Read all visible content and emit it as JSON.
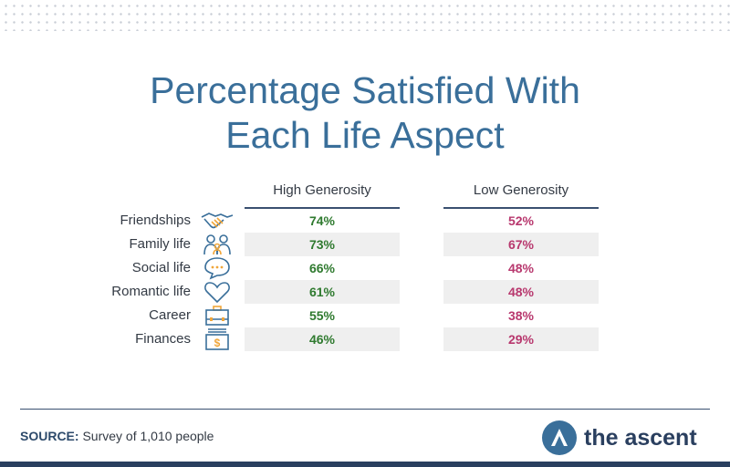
{
  "title": {
    "line1": "Percentage Satisfied With",
    "line2": "Each Life Aspect"
  },
  "columns": {
    "high": "High Generosity",
    "low": "Low Generosity"
  },
  "colors": {
    "title": "#3a6f9a",
    "high": "#2f7a2f",
    "low": "#b8386e",
    "icon": "#f0a63a",
    "icon_alt": "#3a6f9a"
  },
  "rows": [
    {
      "label": "Friendships",
      "icon": "handshake-icon",
      "high": "74%",
      "low": "52%"
    },
    {
      "label": "Family life",
      "icon": "family-icon",
      "high": "73%",
      "low": "67%"
    },
    {
      "label": "Social life",
      "icon": "speech-bubble-icon",
      "high": "66%",
      "low": "48%"
    },
    {
      "label": "Romantic life",
      "icon": "heart-icon",
      "high": "61%",
      "low": "48%"
    },
    {
      "label": "Career",
      "icon": "briefcase-icon",
      "high": "55%",
      "low": "38%"
    },
    {
      "label": "Finances",
      "icon": "money-icon",
      "high": "46%",
      "low": "29%"
    }
  ],
  "chart_data": {
    "type": "table",
    "columns": [
      "High Generosity",
      "Low Generosity"
    ],
    "categories": [
      "Friendships",
      "Family life",
      "Social life",
      "Romantic life",
      "Career",
      "Finances"
    ],
    "series": [
      {
        "name": "High Generosity",
        "values": [
          74,
          73,
          66,
          61,
          55,
          46
        ]
      },
      {
        "name": "Low Generosity",
        "values": [
          52,
          67,
          48,
          48,
          38,
          29
        ]
      }
    ],
    "title": "Percentage Satisfied With Each Life Aspect"
  },
  "source": {
    "label": "SOURCE:",
    "text": "Survey of 1,010 people"
  },
  "brand": {
    "name": "the ascent"
  }
}
